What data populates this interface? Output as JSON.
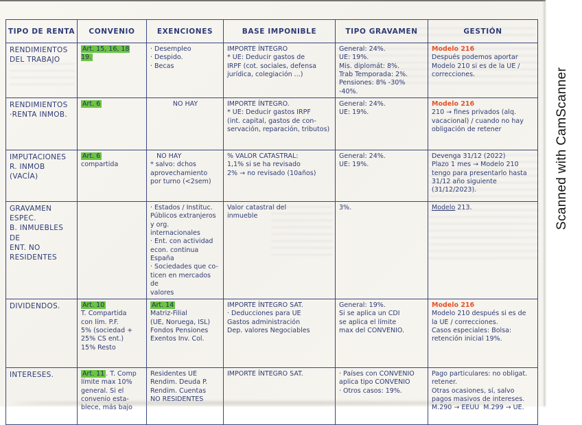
{
  "scan": {
    "watermark": "Scanned with CamScanner"
  },
  "table": {
    "headers": [
      "TIPO DE RENTA",
      "CONVENIO",
      "EXENCIONES",
      "BASE IMPONIBLE",
      "TIPO GRAVAMEN",
      "GESTIÓN"
    ],
    "rows": [
      {
        "name": "rendimientos-del-trabajo",
        "cells": [
          {
            "segs": [
              {
                "t": "RENDIMIENTOS\nDEL TRABAJO",
                "s": ""
              }
            ]
          },
          {
            "segs": [
              {
                "t": "Art. 15, 16, 18\n19.",
                "s": "hl"
              }
            ]
          },
          {
            "segs": [
              {
                "t": "· Desempleo\n· Despido.\n· Becas",
                "s": ""
              }
            ]
          },
          {
            "segs": [
              {
                "t": "IMPORTE ÍNTEGRO\n* UE: Deducir gastos de\nIRPF (cot. sociales, defensa\njurídica, colegiación ...)",
                "s": ""
              }
            ]
          },
          {
            "segs": [
              {
                "t": "General: 24%.\nUE: 19%.\nMis. diplomát: 8%.\nTrab Temporada: 2%.\nPensiones: 8% -30% -40%.",
                "s": ""
              }
            ]
          },
          {
            "segs": [
              {
                "t": "Modelo 216",
                "s": "red"
              },
              {
                "t": "\nDespués podemos aportar\nModelo 210 si es de la UE /\ncorrecciones.",
                "s": ""
              }
            ]
          }
        ]
      },
      {
        "name": "rendimientos-renta-inmob",
        "cells": [
          {
            "segs": [
              {
                "t": "RENDIMIENTOS\n·RENTA INMOB.",
                "s": ""
              }
            ]
          },
          {
            "segs": [
              {
                "t": "Art. 6",
                "s": "hl"
              }
            ]
          },
          {
            "align": "center",
            "segs": [
              {
                "t": "NO HAY",
                "s": ""
              }
            ]
          },
          {
            "segs": [
              {
                "t": "IMPORTE ÍNTEGRO.\n* UE: Deducir gastos IRPF\n(int. capital, gastos de con-\nservación, reparación, tributos)",
                "s": ""
              }
            ]
          },
          {
            "segs": [
              {
                "t": "General: 24%.\nUE: 19%.",
                "s": ""
              }
            ]
          },
          {
            "segs": [
              {
                "t": "Modelo 216",
                "s": "red"
              },
              {
                "t": "\n210 → fines privados (alq.\nvacacional) / cuando no hay\nobligación de retener",
                "s": ""
              }
            ]
          }
        ]
      },
      {
        "name": "imputaciones-r-inmob",
        "cells": [
          {
            "segs": [
              {
                "t": "IMPUTACIONES\nR. INMOB (VACÍA)",
                "s": ""
              }
            ]
          },
          {
            "segs": [
              {
                "t": "Art. 6",
                "s": "hl"
              },
              {
                "t": "\ncompartida",
                "s": ""
              }
            ]
          },
          {
            "segs": [
              {
                "t": "   NO HAY\n* salvo: dchos\naprovechamiento\npor turno (<2sem)",
                "s": ""
              }
            ]
          },
          {
            "segs": [
              {
                "t": "% VALOR CATASTRAL:\n1,1% si se ha revisado\n2% → no revisado (10años)",
                "s": ""
              }
            ]
          },
          {
            "segs": [
              {
                "t": "General: 24%.\nUE: 19%.",
                "s": ""
              }
            ]
          },
          {
            "segs": [
              {
                "t": "Devenga 31/12 (2022)\nPlazo 1 mes → Modelo 210\ntengo para presentarlo hasta\n31/12 año siguiente\n(31/12/2023).",
                "s": ""
              }
            ]
          }
        ]
      },
      {
        "name": "gravamen-especial-bienes-inmuebles",
        "cells": [
          {
            "segs": [
              {
                "t": "GRAVAMEN ESPEC.\nB. INMUEBLES DE\nENT. NO RESIDENTES",
                "s": ""
              }
            ]
          },
          {
            "segs": []
          },
          {
            "segs": [
              {
                "t": "· Estados / Instituc.\nPúblicos extranjeros\ny org. internacionales\n· Ent. con actividad\necon. continua España\n· Sociedades que co-\nticen en mercados de\nvalores",
                "s": ""
              }
            ]
          },
          {
            "segs": [
              {
                "t": "Valor catastral del\ninmueble",
                "s": ""
              }
            ]
          },
          {
            "segs": [
              {
                "t": "3%.",
                "s": ""
              }
            ]
          },
          {
            "segs": [
              {
                "t": "Modelo",
                "s": "u"
              },
              {
                "t": " 213.",
                "s": ""
              }
            ]
          }
        ]
      },
      {
        "name": "dividendos",
        "cells": [
          {
            "segs": [
              {
                "t": "DIVIDENDOS.",
                "s": ""
              }
            ]
          },
          {
            "segs": [
              {
                "t": "Art. 10",
                "s": "hl"
              },
              {
                "t": "\nT. Compartida\ncon lím. P.F.\n5% (sociedad +\n25% CS ent.)\n15% Resto",
                "s": ""
              }
            ]
          },
          {
            "segs": [
              {
                "t": "Art. 14",
                "s": "hl"
              },
              {
                "t": "\nMatriz-Filial\n(UE, Noruega, ISL)\nFondos Pensiones\nExentos Inv. Col.",
                "s": ""
              }
            ]
          },
          {
            "segs": [
              {
                "t": "IMPORTE ÍNTEGRO SAT.\n· Deducciones para UE\nGastos administración\nDep. valores Negociables",
                "s": ""
              }
            ]
          },
          {
            "segs": [
              {
                "t": "General: 19%.\nSi se aplica un CDI\nse aplica el límite\nmax del CONVENIO.",
                "s": ""
              }
            ]
          },
          {
            "segs": [
              {
                "t": "Modelo 216",
                "s": "red"
              },
              {
                "t": "\nModelo 210 después si es de\nla UE / correcciones.\nCasos especiales: Bolsa:\nretención inicial 19%.",
                "s": ""
              }
            ]
          }
        ]
      },
      {
        "name": "intereses",
        "cells": [
          {
            "segs": [
              {
                "t": "INTERESES.",
                "s": ""
              }
            ]
          },
          {
            "segs": [
              {
                "t": "Art. 11",
                "s": "hl"
              },
              {
                "t": ". T. Comp\nlímite max 10%\ngeneral. Si el\nconvenio esta-\nblece, más bajo",
                "s": ""
              }
            ]
          },
          {
            "segs": [
              {
                "t": "Residentes UE\nRendim. Deuda P.\nRendim. Cuentas\nNO RESIDENTES",
                "s": ""
              }
            ]
          },
          {
            "segs": [
              {
                "t": "IMPORTE ÍNTEGRO SAT.",
                "s": ""
              }
            ]
          },
          {
            "segs": [
              {
                "t": "· Países con CONVENIO\naplica tipo CONVENIO\n· Otros casos: 19%.",
                "s": ""
              }
            ]
          },
          {
            "segs": [
              {
                "t": "Pago particulares: no obligat.\nretener.\nOtras ocasiones, sí, salvo\npagos masivos de intereses.\nM.290 → EEUU  M.299 → UE.",
                "s": ""
              }
            ]
          }
        ]
      }
    ]
  }
}
